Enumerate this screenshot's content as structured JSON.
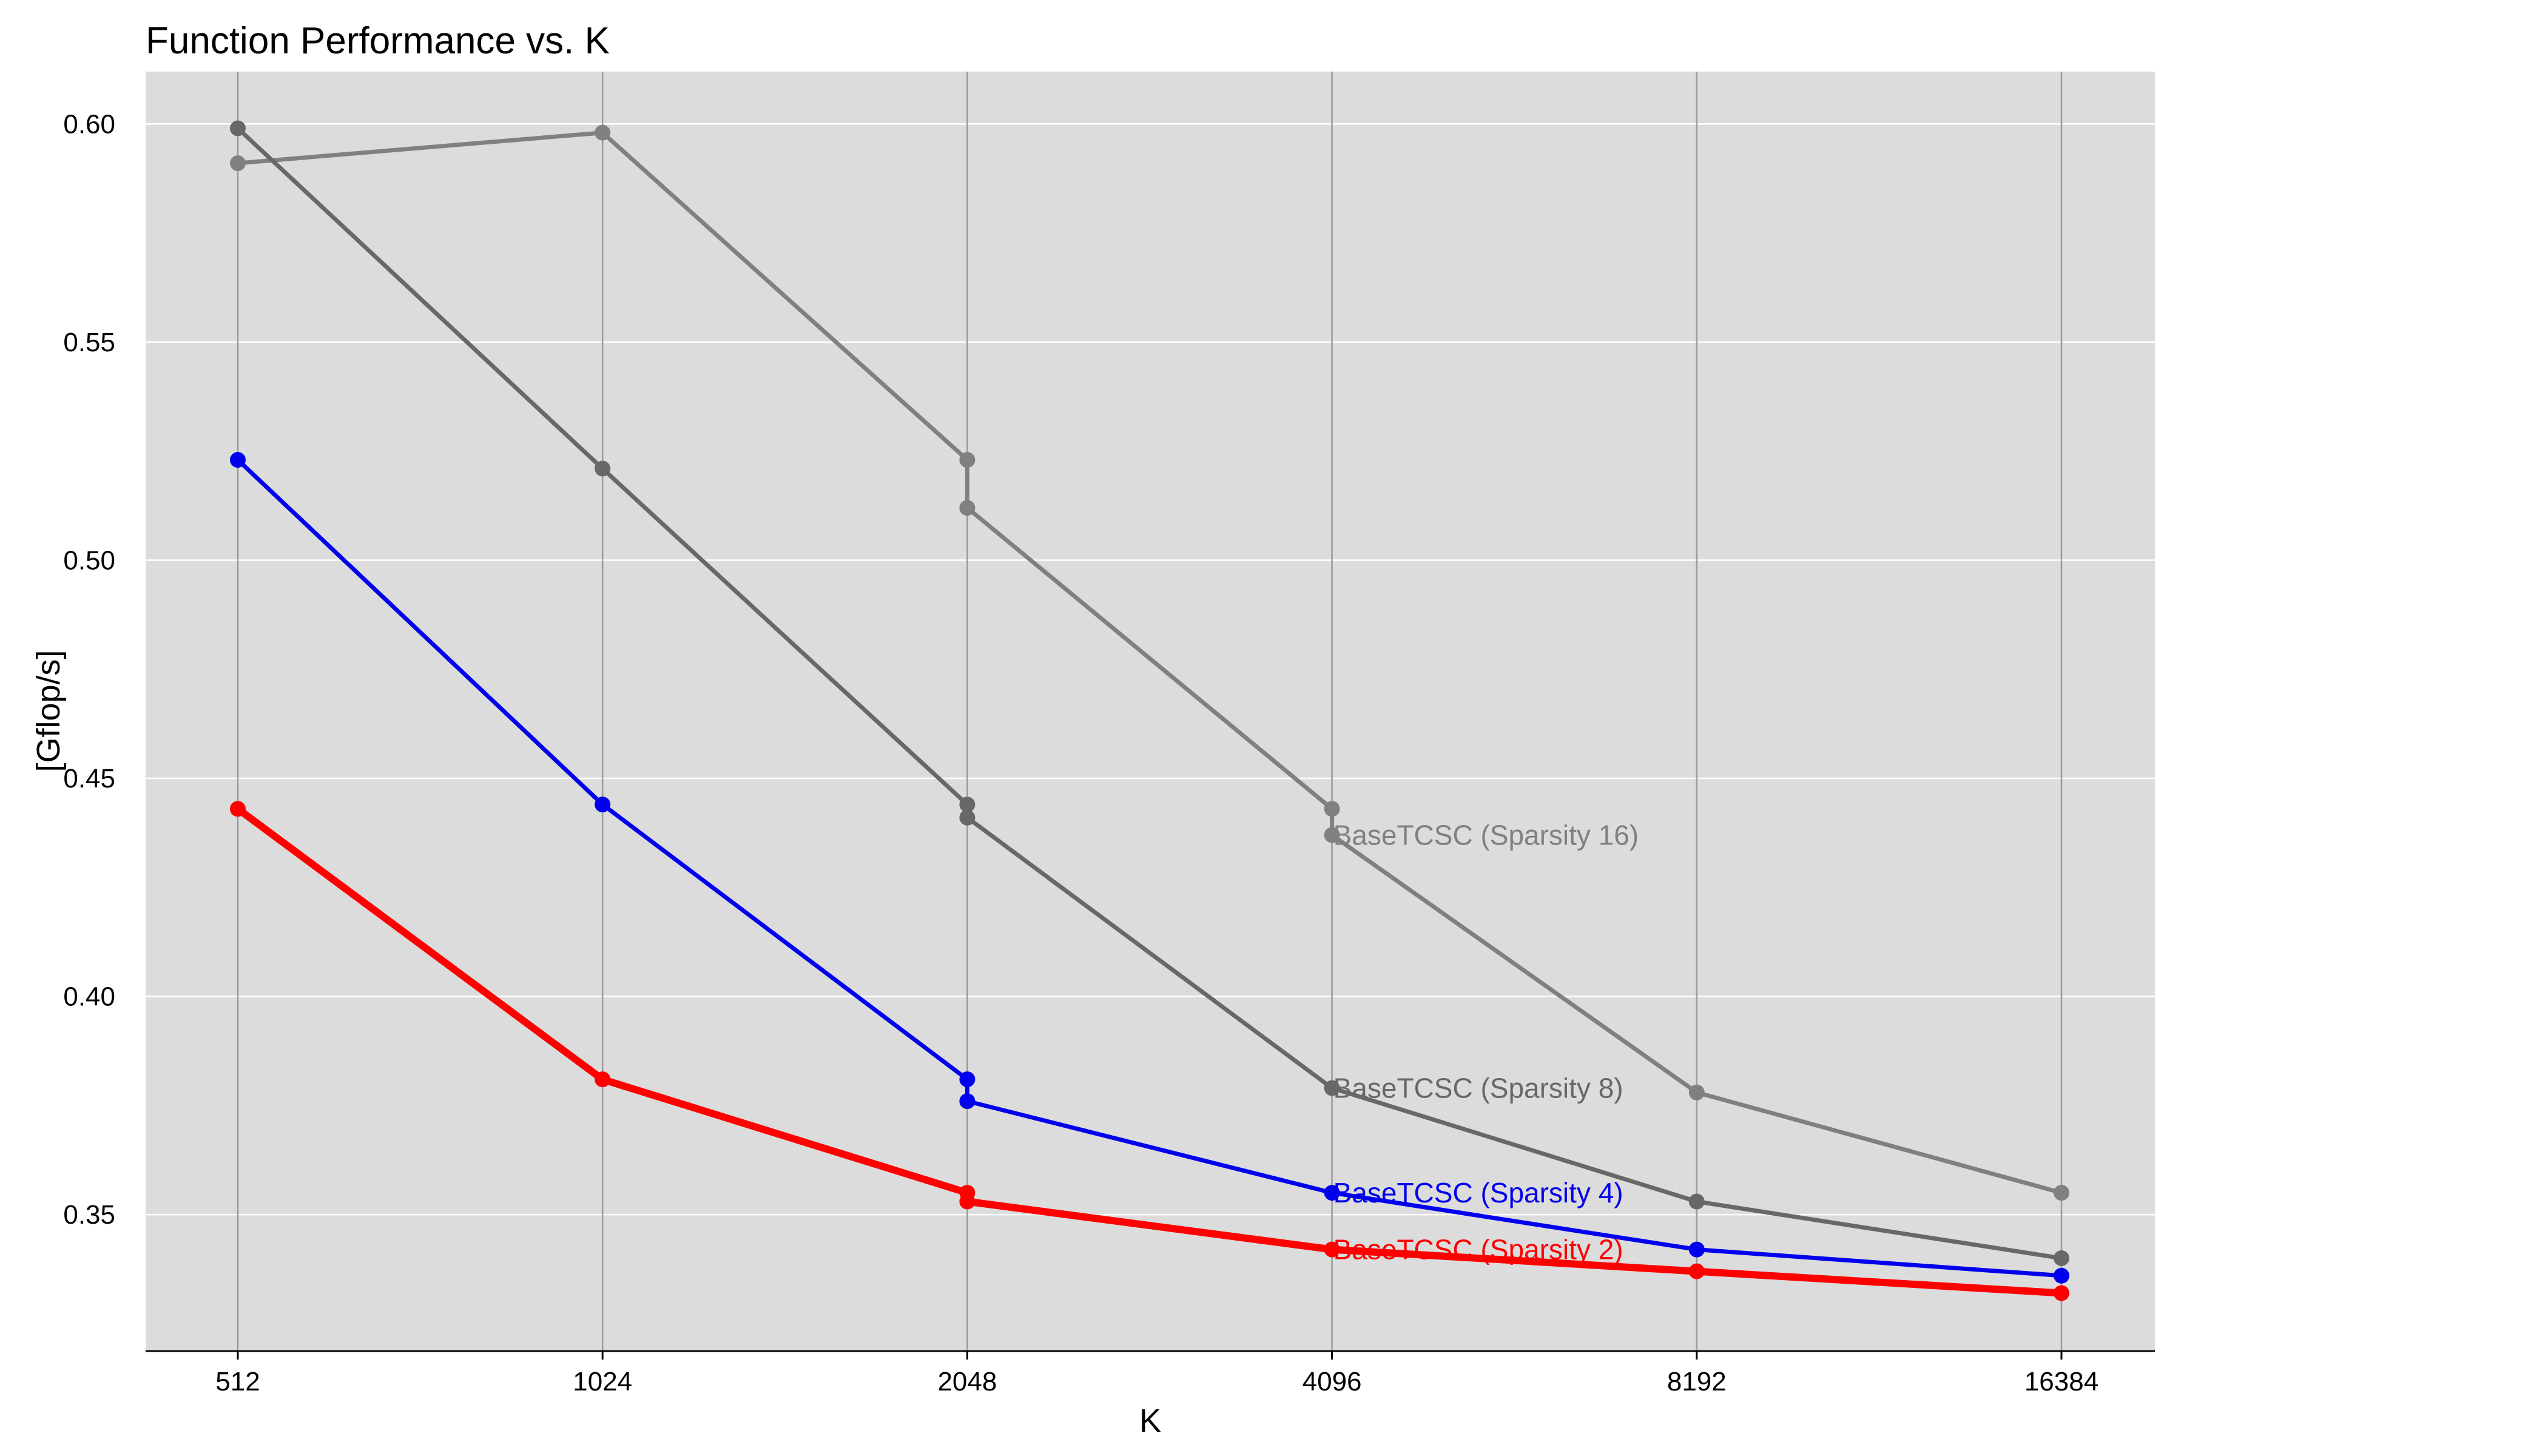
{
  "chart_data": {
    "type": "line",
    "title": "Function Performance vs. K",
    "xlabel": "K",
    "ylabel": "[Gflop/s]",
    "x_scale": "log2",
    "x": [
      512,
      1024,
      2048,
      4096,
      8192,
      16384
    ],
    "x_tick_labels": [
      "512",
      "1024",
      "2048",
      "4096",
      "8192",
      "16384"
    ],
    "ylim": [
      0.319,
      0.612
    ],
    "y_ticks": [
      0.35,
      0.4,
      0.45,
      0.5,
      0.55,
      0.6
    ],
    "y_tick_labels": [
      "0.35",
      "0.40",
      "0.45",
      "0.50",
      "0.55",
      "0.60"
    ],
    "grid": true,
    "background": "#dcdcdc",
    "series": [
      {
        "name": "BaseTCSC (Sparsity 16)",
        "color": "#808080",
        "label_at": 4096,
        "points": [
          {
            "x": 512,
            "y": 0.591
          },
          {
            "x": 1024,
            "y": 0.598
          },
          {
            "x": 2048,
            "y": 0.523
          },
          {
            "x": 2048,
            "y": 0.512
          },
          {
            "x": 4096,
            "y": 0.443
          },
          {
            "x": 4096,
            "y": 0.437
          },
          {
            "x": 8192,
            "y": 0.378
          },
          {
            "x": 16384,
            "y": 0.355
          }
        ]
      },
      {
        "name": "BaseTCSC (Sparsity 8)",
        "color": "#686868",
        "label_at": 4096,
        "points": [
          {
            "x": 512,
            "y": 0.599
          },
          {
            "x": 1024,
            "y": 0.521
          },
          {
            "x": 2048,
            "y": 0.444
          },
          {
            "x": 2048,
            "y": 0.441
          },
          {
            "x": 4096,
            "y": 0.379
          },
          {
            "x": 8192,
            "y": 0.353
          },
          {
            "x": 16384,
            "y": 0.34
          }
        ]
      },
      {
        "name": "BaseTCSC (Sparsity 4)",
        "color": "#0000ee",
        "label_at": 4096,
        "points": [
          {
            "x": 512,
            "y": 0.523
          },
          {
            "x": 1024,
            "y": 0.444
          },
          {
            "x": 2048,
            "y": 0.381
          },
          {
            "x": 2048,
            "y": 0.376
          },
          {
            "x": 4096,
            "y": 0.355
          },
          {
            "x": 8192,
            "y": 0.342
          },
          {
            "x": 16384,
            "y": 0.336
          }
        ]
      },
      {
        "name": "BaseTCSC (Sparsity 2)",
        "color": "#ff0000",
        "label_at": 4096,
        "points": [
          {
            "x": 512,
            "y": 0.443
          },
          {
            "x": 1024,
            "y": 0.381
          },
          {
            "x": 2048,
            "y": 0.355
          },
          {
            "x": 2048,
            "y": 0.353
          },
          {
            "x": 4096,
            "y": 0.342
          },
          {
            "x": 8192,
            "y": 0.337
          },
          {
            "x": 16384,
            "y": 0.332
          }
        ]
      }
    ]
  }
}
